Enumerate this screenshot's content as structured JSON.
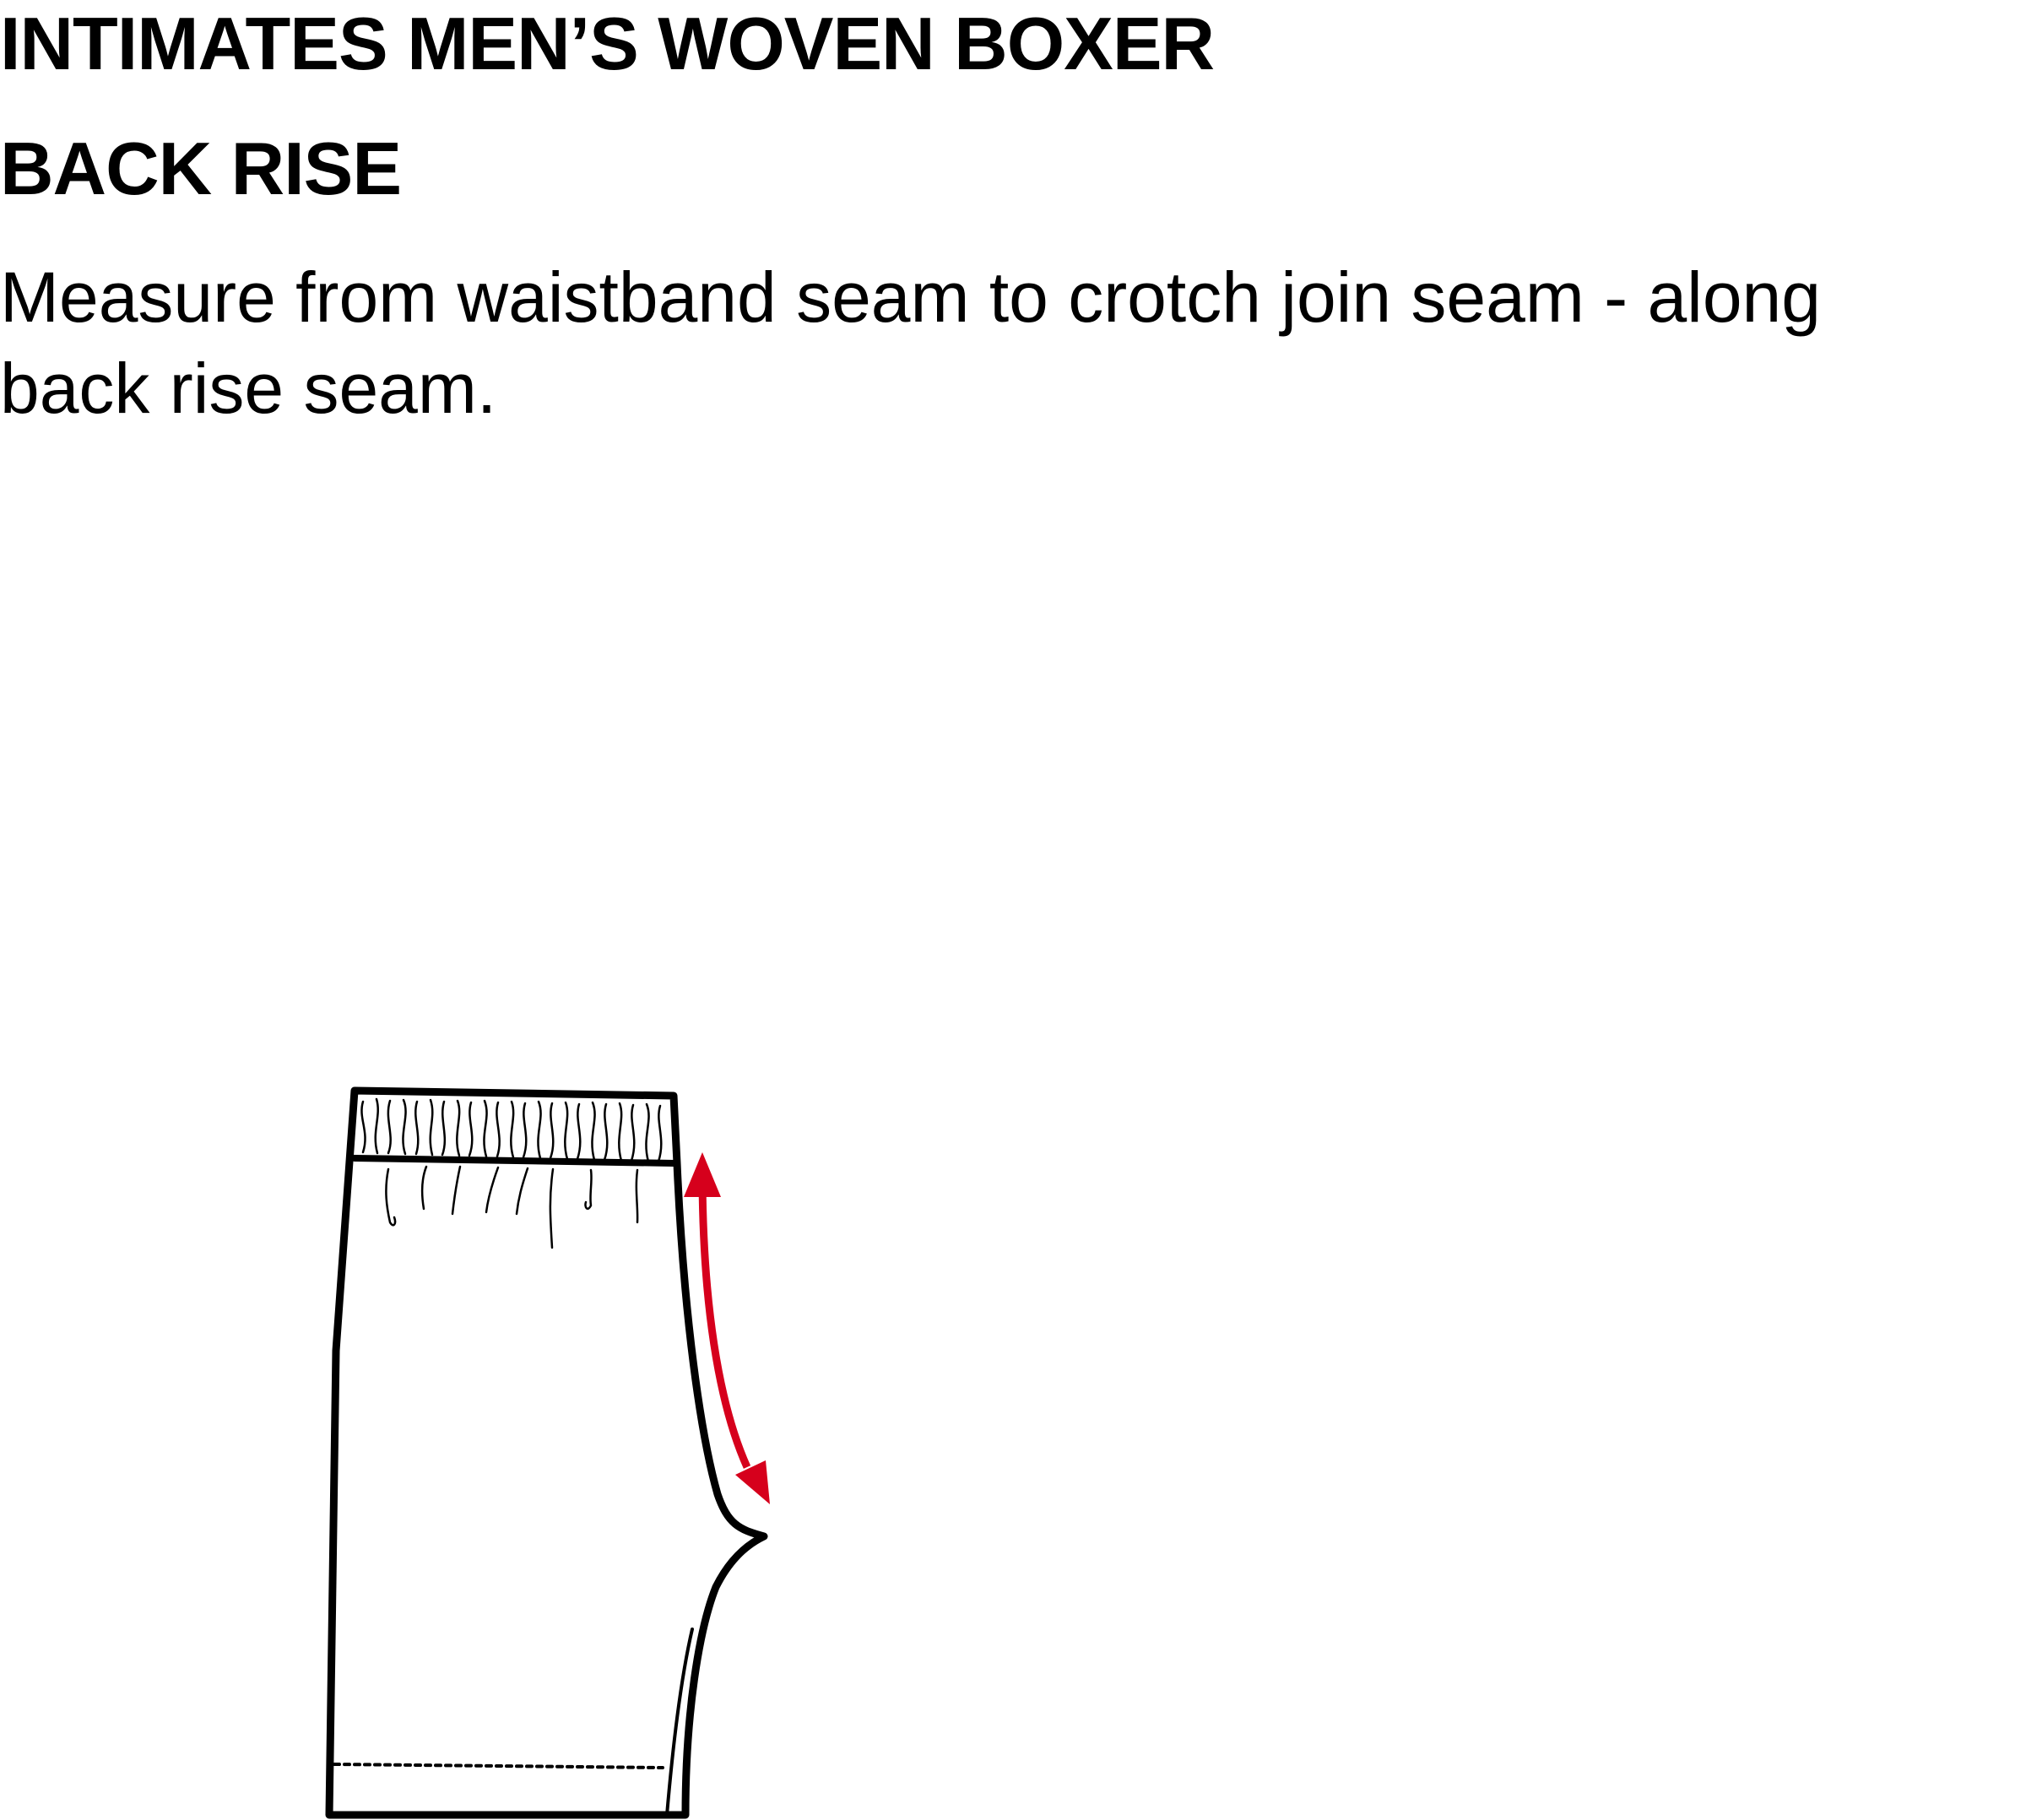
{
  "document": {
    "title": "INTIMATES MEN’S WOVEN BOXER",
    "section_title": "BACK RISE",
    "instructions": "Measure from waistband seam to crotch join seam - along back rise seam."
  },
  "diagram": {
    "outline_color": "#000000",
    "arrow_color": "#d6001c",
    "icons": [
      "boxer-outline",
      "double-headed-arrow"
    ]
  }
}
